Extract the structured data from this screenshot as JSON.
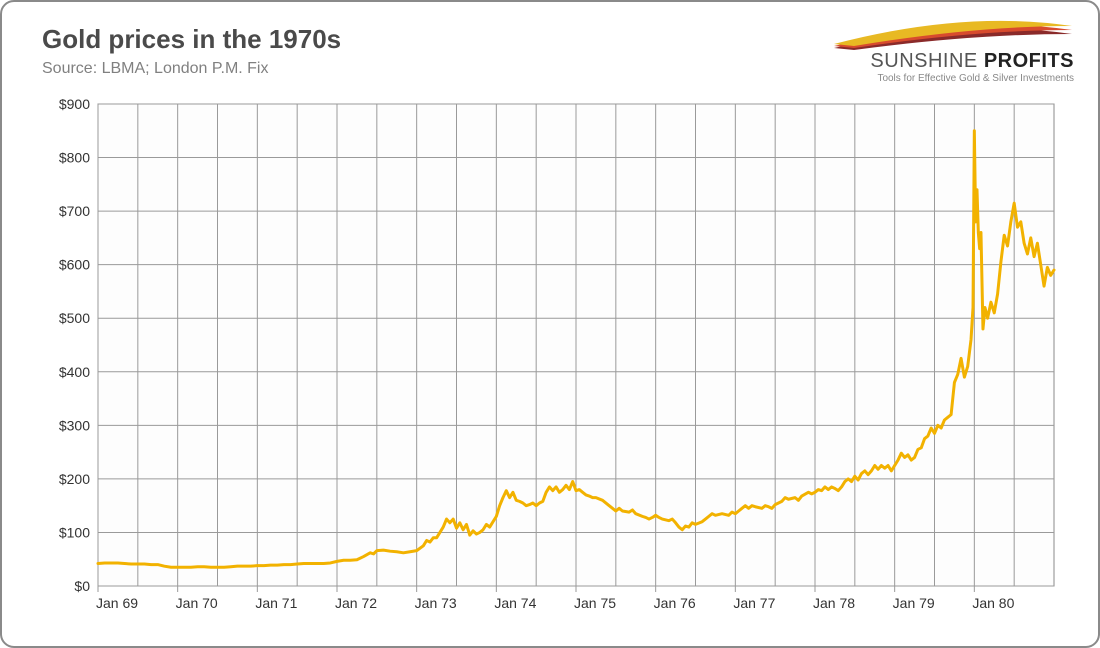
{
  "header": {
    "title": "Gold prices in the 1970s",
    "subtitle": "Source: LBMA; London P.M. Fix"
  },
  "logo": {
    "brand_thin": "SUNSHINE",
    "brand_bold": " PROFITS",
    "tagline": "Tools for Effective Gold & Silver Investments",
    "swoosh_colors": [
      "#e8b923",
      "#d84b2e",
      "#8a2a2a"
    ]
  },
  "chart": {
    "type": "line",
    "background_color": "#fdfdfd",
    "grid_color": "#9a9a9a",
    "line_color": "#f2b200",
    "line_width": 3,
    "tick_font_size": 14,
    "tick_color": "#333333",
    "x": {
      "min": 0,
      "max": 144,
      "tick_step": 12,
      "tick_labels": [
        "Jan 69",
        "Jan 70",
        "Jan 71",
        "Jan 72",
        "Jan 73",
        "Jan 74",
        "Jan 75",
        "Jan 76",
        "Jan 77",
        "Jan 78",
        "Jan 79",
        "Jan 80"
      ]
    },
    "y": {
      "min": 0,
      "max": 900,
      "tick_step": 100,
      "tick_format_prefix": "$"
    },
    "series": [
      {
        "x": 0,
        "y": 42
      },
      {
        "x": 1,
        "y": 43
      },
      {
        "x": 2,
        "y": 43
      },
      {
        "x": 3,
        "y": 43
      },
      {
        "x": 4,
        "y": 42
      },
      {
        "x": 5,
        "y": 41
      },
      {
        "x": 6,
        "y": 41
      },
      {
        "x": 7,
        "y": 41
      },
      {
        "x": 8,
        "y": 40
      },
      {
        "x": 9,
        "y": 40
      },
      {
        "x": 10,
        "y": 37
      },
      {
        "x": 11,
        "y": 35
      },
      {
        "x": 12,
        "y": 35
      },
      {
        "x": 13,
        "y": 35
      },
      {
        "x": 14,
        "y": 35
      },
      {
        "x": 15,
        "y": 36
      },
      {
        "x": 16,
        "y": 36
      },
      {
        "x": 17,
        "y": 35
      },
      {
        "x": 18,
        "y": 35
      },
      {
        "x": 19,
        "y": 35
      },
      {
        "x": 20,
        "y": 36
      },
      {
        "x": 21,
        "y": 37
      },
      {
        "x": 22,
        "y": 37
      },
      {
        "x": 23,
        "y": 37
      },
      {
        "x": 24,
        "y": 38
      },
      {
        "x": 25,
        "y": 38
      },
      {
        "x": 26,
        "y": 39
      },
      {
        "x": 27,
        "y": 39
      },
      {
        "x": 28,
        "y": 40
      },
      {
        "x": 29,
        "y": 40
      },
      {
        "x": 30,
        "y": 41
      },
      {
        "x": 31,
        "y": 42
      },
      {
        "x": 32,
        "y": 42
      },
      {
        "x": 33,
        "y": 42
      },
      {
        "x": 34,
        "y": 42
      },
      {
        "x": 35,
        "y": 43
      },
      {
        "x": 36,
        "y": 46
      },
      {
        "x": 37,
        "y": 48
      },
      {
        "x": 38,
        "y": 48
      },
      {
        "x": 39,
        "y": 49
      },
      {
        "x": 40,
        "y": 55
      },
      {
        "x": 41,
        "y": 62
      },
      {
        "x": 41.5,
        "y": 60
      },
      {
        "x": 42,
        "y": 66
      },
      {
        "x": 43,
        "y": 67
      },
      {
        "x": 44,
        "y": 65
      },
      {
        "x": 45,
        "y": 64
      },
      {
        "x": 46,
        "y": 62
      },
      {
        "x": 47,
        "y": 64
      },
      {
        "x": 48,
        "y": 66
      },
      {
        "x": 49,
        "y": 75
      },
      {
        "x": 49.5,
        "y": 85
      },
      {
        "x": 50,
        "y": 82
      },
      {
        "x": 50.5,
        "y": 90
      },
      {
        "x": 51,
        "y": 90
      },
      {
        "x": 52,
        "y": 110
      },
      {
        "x": 52.5,
        "y": 125
      },
      {
        "x": 53,
        "y": 118
      },
      {
        "x": 53.5,
        "y": 125
      },
      {
        "x": 54,
        "y": 108
      },
      {
        "x": 54.5,
        "y": 118
      },
      {
        "x": 55,
        "y": 105
      },
      {
        "x": 55.5,
        "y": 115
      },
      {
        "x": 56,
        "y": 95
      },
      {
        "x": 56.5,
        "y": 103
      },
      {
        "x": 57,
        "y": 97
      },
      {
        "x": 57.5,
        "y": 100
      },
      {
        "x": 58,
        "y": 105
      },
      {
        "x": 58.5,
        "y": 115
      },
      {
        "x": 59,
        "y": 110
      },
      {
        "x": 60,
        "y": 130
      },
      {
        "x": 60.5,
        "y": 150
      },
      {
        "x": 61,
        "y": 165
      },
      {
        "x": 61.5,
        "y": 178
      },
      {
        "x": 62,
        "y": 165
      },
      {
        "x": 62.5,
        "y": 175
      },
      {
        "x": 63,
        "y": 160
      },
      {
        "x": 63.5,
        "y": 158
      },
      {
        "x": 64,
        "y": 155
      },
      {
        "x": 64.5,
        "y": 150
      },
      {
        "x": 65,
        "y": 152
      },
      {
        "x": 65.5,
        "y": 155
      },
      {
        "x": 66,
        "y": 150
      },
      {
        "x": 66.5,
        "y": 155
      },
      {
        "x": 67,
        "y": 158
      },
      {
        "x": 67.5,
        "y": 175
      },
      {
        "x": 68,
        "y": 185
      },
      {
        "x": 68.5,
        "y": 178
      },
      {
        "x": 69,
        "y": 185
      },
      {
        "x": 69.5,
        "y": 175
      },
      {
        "x": 70,
        "y": 180
      },
      {
        "x": 70.5,
        "y": 188
      },
      {
        "x": 71,
        "y": 180
      },
      {
        "x": 71.5,
        "y": 195
      },
      {
        "x": 72,
        "y": 178
      },
      {
        "x": 72.5,
        "y": 180
      },
      {
        "x": 73,
        "y": 175
      },
      {
        "x": 73.5,
        "y": 170
      },
      {
        "x": 74,
        "y": 168
      },
      {
        "x": 74.5,
        "y": 165
      },
      {
        "x": 75,
        "y": 165
      },
      {
        "x": 76,
        "y": 160
      },
      {
        "x": 77,
        "y": 150
      },
      {
        "x": 77.5,
        "y": 145
      },
      {
        "x": 78,
        "y": 140
      },
      {
        "x": 78.5,
        "y": 145
      },
      {
        "x": 79,
        "y": 140
      },
      {
        "x": 80,
        "y": 138
      },
      {
        "x": 80.5,
        "y": 142
      },
      {
        "x": 81,
        "y": 135
      },
      {
        "x": 82,
        "y": 130
      },
      {
        "x": 82.5,
        "y": 128
      },
      {
        "x": 83,
        "y": 125
      },
      {
        "x": 83.5,
        "y": 128
      },
      {
        "x": 84,
        "y": 132
      },
      {
        "x": 84.5,
        "y": 128
      },
      {
        "x": 85,
        "y": 125
      },
      {
        "x": 86,
        "y": 122
      },
      {
        "x": 86.5,
        "y": 125
      },
      {
        "x": 87,
        "y": 118
      },
      {
        "x": 87.5,
        "y": 110
      },
      {
        "x": 88,
        "y": 105
      },
      {
        "x": 88.5,
        "y": 112
      },
      {
        "x": 89,
        "y": 110
      },
      {
        "x": 89.5,
        "y": 118
      },
      {
        "x": 90,
        "y": 115
      },
      {
        "x": 91,
        "y": 120
      },
      {
        "x": 91.5,
        "y": 125
      },
      {
        "x": 92,
        "y": 130
      },
      {
        "x": 92.5,
        "y": 135
      },
      {
        "x": 93,
        "y": 132
      },
      {
        "x": 94,
        "y": 135
      },
      {
        "x": 95,
        "y": 132
      },
      {
        "x": 95.5,
        "y": 138
      },
      {
        "x": 96,
        "y": 135
      },
      {
        "x": 96.5,
        "y": 140
      },
      {
        "x": 97,
        "y": 145
      },
      {
        "x": 97.5,
        "y": 150
      },
      {
        "x": 98,
        "y": 145
      },
      {
        "x": 98.5,
        "y": 150
      },
      {
        "x": 99,
        "y": 148
      },
      {
        "x": 100,
        "y": 145
      },
      {
        "x": 100.5,
        "y": 150
      },
      {
        "x": 101,
        "y": 148
      },
      {
        "x": 101.5,
        "y": 145
      },
      {
        "x": 102,
        "y": 152
      },
      {
        "x": 103,
        "y": 158
      },
      {
        "x": 103.5,
        "y": 165
      },
      {
        "x": 104,
        "y": 162
      },
      {
        "x": 105,
        "y": 165
      },
      {
        "x": 105.5,
        "y": 160
      },
      {
        "x": 106,
        "y": 168
      },
      {
        "x": 107,
        "y": 175
      },
      {
        "x": 107.5,
        "y": 172
      },
      {
        "x": 108,
        "y": 175
      },
      {
        "x": 108.5,
        "y": 180
      },
      {
        "x": 109,
        "y": 178
      },
      {
        "x": 109.5,
        "y": 185
      },
      {
        "x": 110,
        "y": 180
      },
      {
        "x": 110.5,
        "y": 185
      },
      {
        "x": 111,
        "y": 182
      },
      {
        "x": 111.5,
        "y": 178
      },
      {
        "x": 112,
        "y": 185
      },
      {
        "x": 112.5,
        "y": 195
      },
      {
        "x": 113,
        "y": 200
      },
      {
        "x": 113.5,
        "y": 195
      },
      {
        "x": 114,
        "y": 205
      },
      {
        "x": 114.5,
        "y": 198
      },
      {
        "x": 115,
        "y": 210
      },
      {
        "x": 115.5,
        "y": 215
      },
      {
        "x": 116,
        "y": 208
      },
      {
        "x": 116.5,
        "y": 215
      },
      {
        "x": 117,
        "y": 225
      },
      {
        "x": 117.5,
        "y": 218
      },
      {
        "x": 118,
        "y": 225
      },
      {
        "x": 118.5,
        "y": 220
      },
      {
        "x": 119,
        "y": 225
      },
      {
        "x": 119.5,
        "y": 215
      },
      {
        "x": 120,
        "y": 225
      },
      {
        "x": 120.5,
        "y": 235
      },
      {
        "x": 121,
        "y": 248
      },
      {
        "x": 121.5,
        "y": 240
      },
      {
        "x": 122,
        "y": 245
      },
      {
        "x": 122.5,
        "y": 235
      },
      {
        "x": 123,
        "y": 240
      },
      {
        "x": 123.5,
        "y": 255
      },
      {
        "x": 124,
        "y": 258
      },
      {
        "x": 124.5,
        "y": 275
      },
      {
        "x": 125,
        "y": 280
      },
      {
        "x": 125.5,
        "y": 295
      },
      {
        "x": 126,
        "y": 285
      },
      {
        "x": 126.5,
        "y": 300
      },
      {
        "x": 127,
        "y": 295
      },
      {
        "x": 127.5,
        "y": 310
      },
      {
        "x": 128,
        "y": 315
      },
      {
        "x": 128.5,
        "y": 320
      },
      {
        "x": 129,
        "y": 380
      },
      {
        "x": 129.5,
        "y": 395
      },
      {
        "x": 130,
        "y": 425
      },
      {
        "x": 130.5,
        "y": 390
      },
      {
        "x": 131,
        "y": 410
      },
      {
        "x": 131.5,
        "y": 460
      },
      {
        "x": 131.8,
        "y": 520
      },
      {
        "x": 132,
        "y": 850
      },
      {
        "x": 132.2,
        "y": 680
      },
      {
        "x": 132.4,
        "y": 740
      },
      {
        "x": 132.6,
        "y": 660
      },
      {
        "x": 132.8,
        "y": 630
      },
      {
        "x": 133,
        "y": 660
      },
      {
        "x": 133.3,
        "y": 480
      },
      {
        "x": 133.6,
        "y": 520
      },
      {
        "x": 134,
        "y": 500
      },
      {
        "x": 134.5,
        "y": 530
      },
      {
        "x": 135,
        "y": 510
      },
      {
        "x": 135.5,
        "y": 545
      },
      {
        "x": 136,
        "y": 605
      },
      {
        "x": 136.5,
        "y": 655
      },
      {
        "x": 137,
        "y": 635
      },
      {
        "x": 137.5,
        "y": 680
      },
      {
        "x": 138,
        "y": 715
      },
      {
        "x": 138.5,
        "y": 670
      },
      {
        "x": 139,
        "y": 680
      },
      {
        "x": 139.5,
        "y": 640
      },
      {
        "x": 140,
        "y": 620
      },
      {
        "x": 140.5,
        "y": 650
      },
      {
        "x": 141,
        "y": 615
      },
      {
        "x": 141.5,
        "y": 640
      },
      {
        "x": 142,
        "y": 600
      },
      {
        "x": 142.5,
        "y": 560
      },
      {
        "x": 143,
        "y": 595
      },
      {
        "x": 143.5,
        "y": 580
      },
      {
        "x": 144,
        "y": 590
      }
    ]
  }
}
